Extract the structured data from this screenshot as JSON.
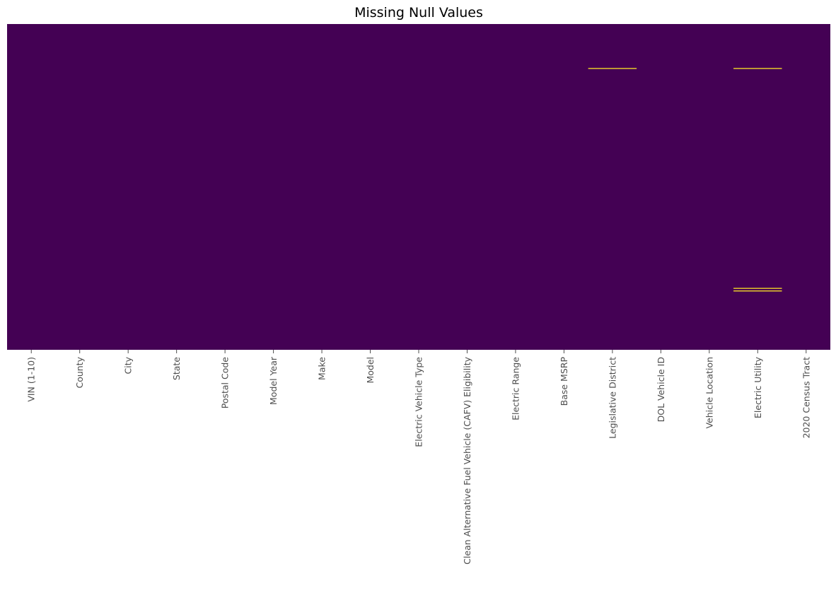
{
  "chart_data": {
    "type": "heatmap",
    "title": "Missing Null Values",
    "xlabel": "",
    "ylabel": "",
    "columns": [
      "VIN (1-10)",
      "County",
      "City",
      "State",
      "Postal Code",
      "Model Year",
      "Make",
      "Model",
      "Electric Vehicle Type",
      "Clean Alternative Fuel Vehicle (CAFV) Eligibility",
      "Electric Range",
      "Base MSRP",
      "Legislative District",
      "DOL Vehicle ID",
      "Vehicle Location",
      "Electric Utility",
      "2020 Census Tract"
    ],
    "values": [
      0,
      1
    ],
    "grid": false,
    "legend": "none",
    "y_tick_labels": false,
    "missing_rows": [
      {
        "column": "Legislative District",
        "row_fraction": 0.135
      },
      {
        "column": "Electric Utility",
        "row_fraction": 0.135
      },
      {
        "column": "Electric Utility",
        "row_fraction": 0.81
      },
      {
        "column": "Electric Utility",
        "row_fraction": 0.818
      }
    ],
    "colors": {
      "present": "#440154",
      "missing": "#fde725",
      "tick_label": "#4d4d4d",
      "tick": "#4d4d4d"
    }
  }
}
